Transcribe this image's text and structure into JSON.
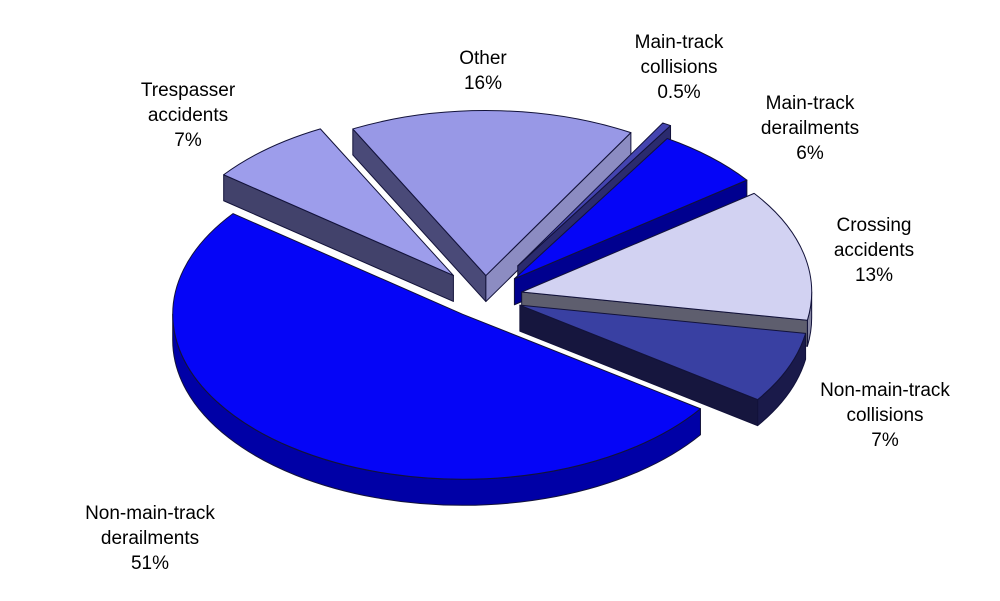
{
  "page": {
    "background_color": "#ffffff",
    "text_color": "#000000"
  },
  "chart_data": {
    "type": "pie",
    "style": "3d-exploded-pie",
    "unit": "%",
    "legend": "none",
    "labels_on": "outside",
    "label_color": "#000000",
    "slices": [
      {
        "name": "main-track-collisions",
        "label": "Main-track collisions",
        "label_lines": [
          "Main-track",
          "collisions",
          "0.5%"
        ],
        "value": 0.5,
        "pct_text": "0.5%",
        "colors": {
          "top": "#4444B0",
          "cut_start": "#26265C",
          "cut_end": "#2B2B6E",
          "rim": "#26265C"
        }
      },
      {
        "name": "main-track-derailments",
        "label": "Main-track derailments",
        "label_lines": [
          "Main-track",
          "derailments",
          "6%"
        ],
        "value": 6,
        "pct_text": "6%",
        "colors": {
          "top": "#0505F7",
          "cut_start": "#000080",
          "cut_end": "#00008F",
          "rim": "#0000A0"
        }
      },
      {
        "name": "crossing-accidents",
        "label": "Crossing accidents",
        "label_lines": [
          "Crossing",
          "accidents",
          "13%"
        ],
        "value": 13,
        "pct_text": "13%",
        "colors": {
          "top": "#D2D2F2",
          "cut_start": "#8888A0",
          "cut_end": "#5E5E6E",
          "rim": "#8888A5"
        }
      },
      {
        "name": "non-main-track-collisions",
        "label": "Non-main-track collisions",
        "label_lines": [
          "Non-main-track",
          "collisions",
          "7%"
        ],
        "value": 7,
        "pct_text": "7%",
        "colors": {
          "top": "#3940A2",
          "cut_start": "#16163E",
          "cut_end": "#16163E",
          "rim": "#1A1A4A"
        }
      },
      {
        "name": "non-main-track-derailments",
        "label": "Non-main-track derailments",
        "label_lines": [
          "Non-main-track",
          "derailments",
          "51%"
        ],
        "value": 51,
        "pct_text": "51%",
        "colors": {
          "top": "#0505F7",
          "cut_start": "#000080",
          "cut_end": "#000080",
          "rim": "#0000A6"
        }
      },
      {
        "name": "trespasser-accidents",
        "label": "Trespasser accidents",
        "label_lines": [
          "Trespasser",
          "accidents",
          "7%"
        ],
        "value": 7,
        "pct_text": "7%",
        "colors": {
          "top": "#9D9DEB",
          "cut_start": "#42426B",
          "cut_end": "#6A6A92",
          "rim": "#6A6A92"
        }
      },
      {
        "name": "other",
        "label": "Other",
        "label_lines": [
          "Other",
          "16%"
        ],
        "value": 16,
        "pct_text": "16%",
        "colors": {
          "top": "#9898E6",
          "cut_start": "#4A4A78",
          "cut_end": "#8C8CC2",
          "rim": "#6A6A92"
        }
      }
    ]
  }
}
